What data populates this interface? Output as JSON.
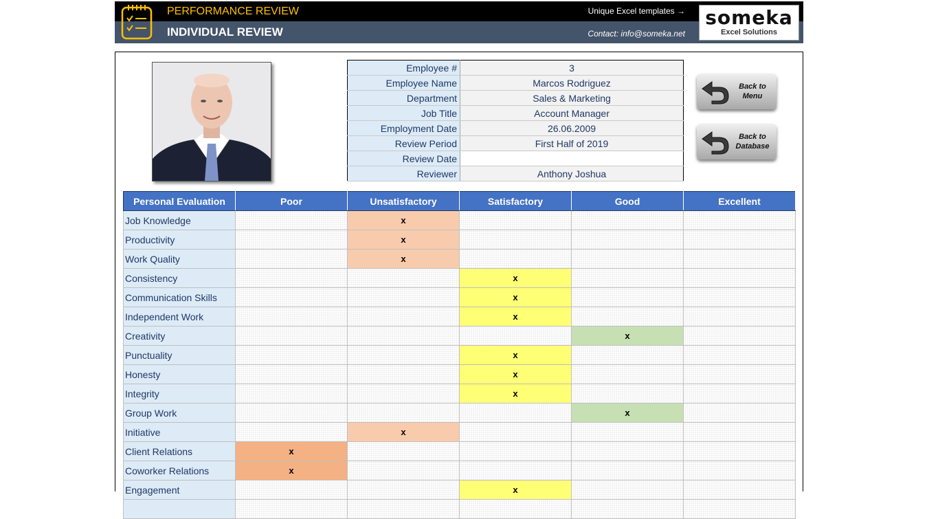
{
  "header": {
    "title": "PERFORMANCE REVIEW",
    "subtitle": "INDIVIDUAL REVIEW",
    "templates_link": "Unique Excel templates →",
    "contact": "Contact: info@someka.net",
    "logo_main": "someka",
    "logo_sub": "Excel Solutions",
    "icon": "clipboard-checklist-icon"
  },
  "employee": {
    "fields": [
      {
        "label": "Employee #",
        "value": "3"
      },
      {
        "label": "Employee Name",
        "value": "Marcos Rodriguez"
      },
      {
        "label": "Department",
        "value": "Sales & Marketing"
      },
      {
        "label": "Job Title",
        "value": "Account Manager"
      },
      {
        "label": "Employment Date",
        "value": "26.06.2009"
      },
      {
        "label": "Review Period",
        "value": "First Half of 2019"
      },
      {
        "label": "Review Date",
        "value": ""
      },
      {
        "label": "Reviewer",
        "value": "Anthony Joshua"
      }
    ]
  },
  "buttons": {
    "back_menu": "Back to Menu",
    "back_database": "Back to Database",
    "icon": "back-arrow-icon"
  },
  "evaluation": {
    "columns": [
      "Personal Evaluation",
      "Poor",
      "Unsatisfactory",
      "Satisfactory",
      "Good",
      "Excellent"
    ],
    "mark": "x",
    "rows": [
      {
        "criterion": "Job Knowledge",
        "rating": "Unsatisfactory"
      },
      {
        "criterion": "Productivity",
        "rating": "Unsatisfactory"
      },
      {
        "criterion": "Work Quality",
        "rating": "Unsatisfactory"
      },
      {
        "criterion": "Consistency",
        "rating": "Satisfactory"
      },
      {
        "criterion": "Communication Skills",
        "rating": "Satisfactory"
      },
      {
        "criterion": "Independent Work",
        "rating": "Satisfactory"
      },
      {
        "criterion": "Creativity",
        "rating": "Good"
      },
      {
        "criterion": "Punctuality",
        "rating": "Satisfactory"
      },
      {
        "criterion": "Honesty",
        "rating": "Satisfactory"
      },
      {
        "criterion": "Integrity",
        "rating": "Satisfactory"
      },
      {
        "criterion": "Group Work",
        "rating": "Good"
      },
      {
        "criterion": "Initiative",
        "rating": "Unsatisfactory"
      },
      {
        "criterion": "Client Relations",
        "rating": "Poor"
      },
      {
        "criterion": "Coworker Relations",
        "rating": "Poor"
      },
      {
        "criterion": "Engagement",
        "rating": "Satisfactory"
      },
      {
        "criterion": "",
        "rating": ""
      }
    ]
  },
  "colors": {
    "header_blue": "#4472c4",
    "label_blue": "#ddebf7",
    "poor": "#f4b183",
    "unsatisfactory": "#f8cbad",
    "satisfactory": "#ffff75",
    "good": "#c6e0b4",
    "banner_accent": "#ffc000"
  }
}
